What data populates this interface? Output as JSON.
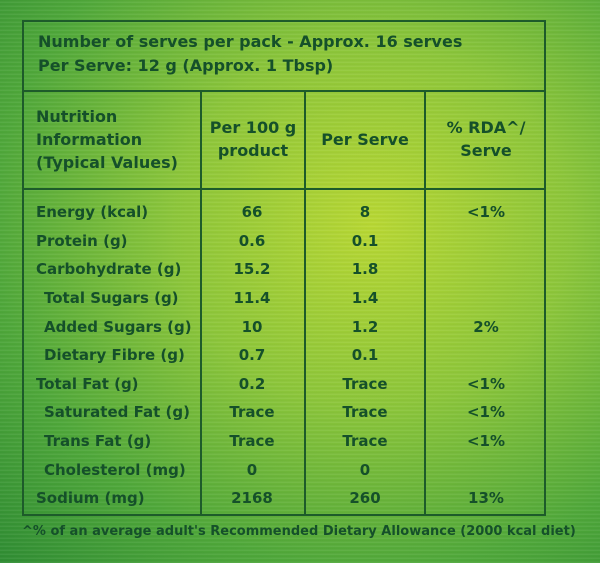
{
  "header": {
    "line1": "Number of serves per pack - Approx. 16 serves",
    "line2": "Per Serve: 12 g (Approx. 1 Tbsp)"
  },
  "columns": [
    "Nutrition\nInformation\n(Typical Values)",
    "Per 100 g\nproduct",
    "Per Serve",
    "% RDA^/\nServe"
  ],
  "rows": [
    {
      "name": "Energy (kcal)",
      "indent": false,
      "per100": "66",
      "perServe": "8",
      "rda": "<1%"
    },
    {
      "name": "Protein (g)",
      "indent": false,
      "per100": "0.6",
      "perServe": "0.1",
      "rda": ""
    },
    {
      "name": "Carbohydrate (g)",
      "indent": false,
      "per100": "15.2",
      "perServe": "1.8",
      "rda": ""
    },
    {
      "name": "Total Sugars (g)",
      "indent": true,
      "per100": "11.4",
      "perServe": "1.4",
      "rda": ""
    },
    {
      "name": "Added Sugars (g)",
      "indent": true,
      "per100": "10",
      "perServe": "1.2",
      "rda": "2%"
    },
    {
      "name": "Dietary Fibre (g)",
      "indent": true,
      "per100": "0.7",
      "perServe": "0.1",
      "rda": ""
    },
    {
      "name": "Total Fat (g)",
      "indent": false,
      "per100": "0.2",
      "perServe": "Trace",
      "rda": "<1%"
    },
    {
      "name": "Saturated Fat (g)",
      "indent": true,
      "per100": "Trace",
      "perServe": "Trace",
      "rda": "<1%"
    },
    {
      "name": "Trans Fat (g)",
      "indent": true,
      "per100": "Trace",
      "perServe": "Trace",
      "rda": "<1%"
    },
    {
      "name": "Cholesterol (mg)",
      "indent": true,
      "per100": "0",
      "perServe": "0",
      "rda": ""
    },
    {
      "name": "Sodium (mg)",
      "indent": false,
      "per100": "2168",
      "perServe": "260",
      "rda": "13%"
    }
  ],
  "footnote": "^% of an average adult's Recommended Dietary Allowance (2000 kcal diet)",
  "colors": {
    "text": "#15502a",
    "rule": "#1d5b2a",
    "background": "#8cc63a"
  }
}
